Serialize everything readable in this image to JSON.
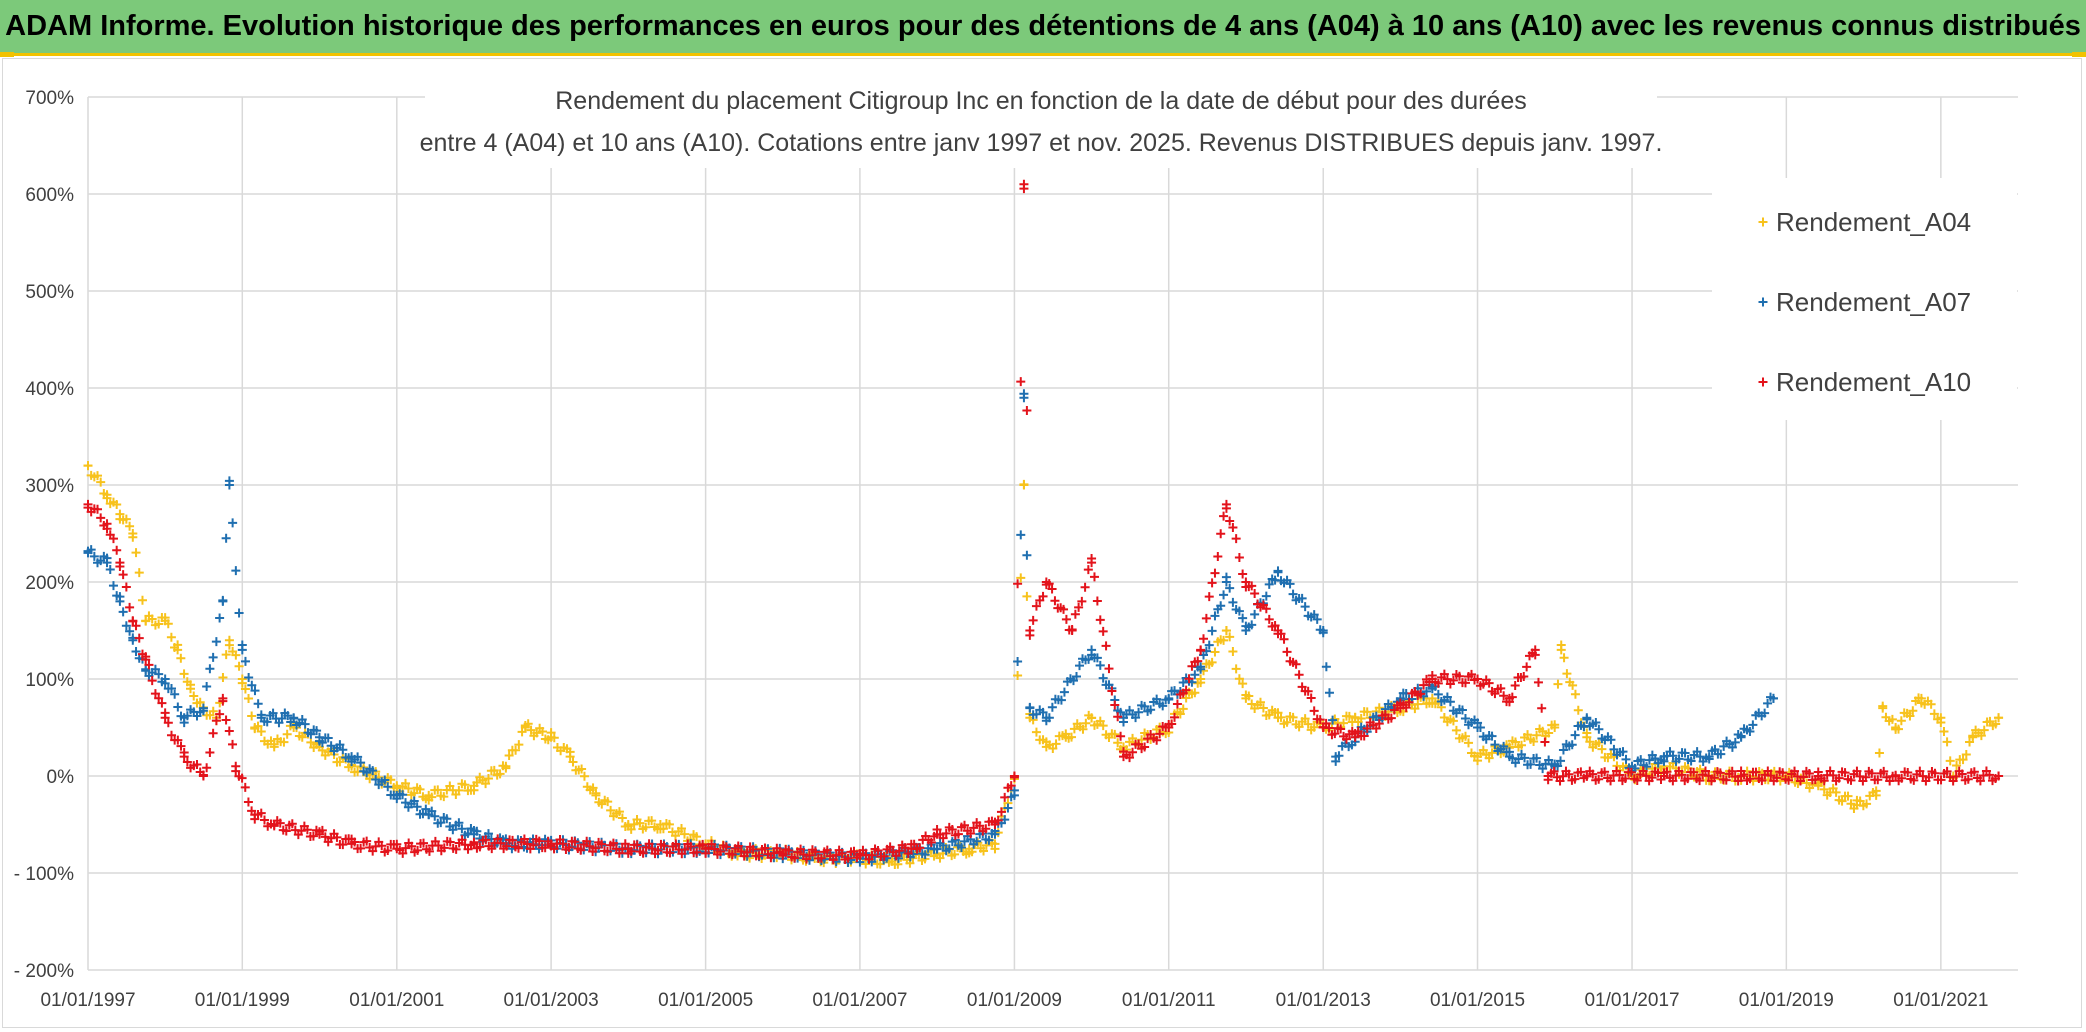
{
  "banner": {
    "title": "ADAM Informe. Evolution historique des performances en euros pour des détentions de 4 ans (A04) à 10 ans (A10) avec les revenus connus distribués"
  },
  "colors": {
    "banner_bg": "#7cc97a",
    "banner_accent": "#f2c200",
    "A04": "#f7c21c",
    "A07": "#1f6fb0",
    "A10": "#e3131b",
    "grid": "#d9d9d9"
  },
  "chart_data": {
    "type": "scatter",
    "title_lines": [
      "Rendement du placement Citigroup Inc en fonction de la date de début pour des durées",
      "entre 4 (A04) et 10 ans (A10). Cotations entre janv 1997 et nov. 2025. Revenus DISTRIBUES depuis janv. 1997."
    ],
    "xlabel": "",
    "ylabel": "",
    "x_range": [
      "1997-01-01",
      "2022-01-01"
    ],
    "ylim": [
      -200,
      700
    ],
    "y_ticks": [
      -200,
      -100,
      0,
      100,
      200,
      300,
      400,
      500,
      600,
      700
    ],
    "y_tick_labels": [
      "- 200%",
      "- 100%",
      "0%",
      "100%",
      "200%",
      "300%",
      "400%",
      "500%",
      "600%",
      "700%"
    ],
    "x_ticks": [
      "1997-01-01",
      "1999-01-01",
      "2001-01-01",
      "2003-01-01",
      "2005-01-01",
      "2007-01-01",
      "2009-01-01",
      "2011-01-01",
      "2013-01-01",
      "2015-01-01",
      "2017-01-01",
      "2019-01-01",
      "2021-01-01"
    ],
    "x_tick_labels": [
      "01/01/1997",
      "01/01/1999",
      "01/01/2001",
      "01/01/2003",
      "01/01/2005",
      "01/01/2007",
      "01/01/2009",
      "01/01/2011",
      "01/01/2013",
      "01/01/2015",
      "01/01/2017",
      "01/01/2019",
      "01/01/2021"
    ],
    "grid": true,
    "legend_position": "top-right",
    "marker": "+",
    "series": [
      {
        "name": "Rendement_A04",
        "color": "#f7c21c",
        "points": [
          [
            "1997-01-01",
            320
          ],
          [
            "1997-04-01",
            290
          ],
          [
            "1997-06-01",
            270
          ],
          [
            "1997-08-01",
            250
          ],
          [
            "1997-10-01",
            160
          ],
          [
            "1998-01-01",
            160
          ],
          [
            "1998-03-01",
            130
          ],
          [
            "1998-05-01",
            90
          ],
          [
            "1998-07-01",
            70
          ],
          [
            "1998-09-01",
            60
          ],
          [
            "1998-11-01",
            140
          ],
          [
            "1999-01-01",
            100
          ],
          [
            "1999-03-01",
            50
          ],
          [
            "1999-06-01",
            30
          ],
          [
            "1999-09-01",
            50
          ],
          [
            "2000-01-01",
            30
          ],
          [
            "2000-06-01",
            10
          ],
          [
            "2001-01-01",
            -10
          ],
          [
            "2001-06-01",
            -20
          ],
          [
            "2002-01-01",
            -10
          ],
          [
            "2002-06-01",
            10
          ],
          [
            "2002-09-01",
            50
          ],
          [
            "2003-01-01",
            40
          ],
          [
            "2003-04-01",
            20
          ],
          [
            "2003-08-01",
            -20
          ],
          [
            "2004-01-01",
            -50
          ],
          [
            "2004-06-01",
            -50
          ],
          [
            "2005-01-01",
            -70
          ],
          [
            "2005-06-01",
            -80
          ],
          [
            "2006-01-01",
            -80
          ],
          [
            "2006-06-01",
            -85
          ],
          [
            "2007-01-01",
            -85
          ],
          [
            "2007-06-01",
            -88
          ],
          [
            "2008-01-01",
            -80
          ],
          [
            "2008-06-01",
            -75
          ],
          [
            "2008-10-01",
            -70
          ],
          [
            "2009-01-01",
            0
          ],
          [
            "2009-02-15",
            300
          ],
          [
            "2009-03-15",
            60
          ],
          [
            "2009-06-01",
            30
          ],
          [
            "2009-09-01",
            40
          ],
          [
            "2010-01-01",
            60
          ],
          [
            "2010-06-01",
            30
          ],
          [
            "2011-01-01",
            50
          ],
          [
            "2011-06-01",
            100
          ],
          [
            "2011-10-01",
            150
          ],
          [
            "2012-01-01",
            80
          ],
          [
            "2012-06-01",
            60
          ],
          [
            "2013-01-01",
            50
          ],
          [
            "2013-06-01",
            60
          ],
          [
            "2014-01-01",
            70
          ],
          [
            "2014-06-01",
            80
          ],
          [
            "2015-01-01",
            20
          ],
          [
            "2015-06-01",
            30
          ],
          [
            "2016-01-01",
            50
          ],
          [
            "2016-02-01",
            130
          ],
          [
            "2016-06-01",
            40
          ],
          [
            "2017-01-01",
            0
          ],
          [
            "2017-06-01",
            10
          ],
          [
            "2018-01-01",
            0
          ],
          [
            "2018-06-01",
            0
          ],
          [
            "2019-01-01",
            0
          ],
          [
            "2019-06-01",
            -10
          ],
          [
            "2019-12-01",
            -30
          ],
          [
            "2020-03-01",
            -20
          ],
          [
            "2020-04-01",
            70
          ],
          [
            "2020-06-01",
            50
          ],
          [
            "2020-10-01",
            80
          ],
          [
            "2021-01-01",
            60
          ],
          [
            "2021-03-01",
            0
          ],
          [
            "2021-06-01",
            40
          ],
          [
            "2021-10-01",
            60
          ]
        ]
      },
      {
        "name": "Rendement_A07",
        "color": "#1f6fb0",
        "points": [
          [
            "1997-01-01",
            230
          ],
          [
            "1997-04-01",
            220
          ],
          [
            "1997-06-01",
            180
          ],
          [
            "1997-08-01",
            140
          ],
          [
            "1997-10-01",
            110
          ],
          [
            "1998-01-01",
            100
          ],
          [
            "1998-04-01",
            60
          ],
          [
            "1998-07-01",
            70
          ],
          [
            "1998-10-01",
            180
          ],
          [
            "1998-11-01",
            300
          ],
          [
            "1999-01-01",
            130
          ],
          [
            "1999-04-01",
            60
          ],
          [
            "1999-09-01",
            60
          ],
          [
            "2000-01-01",
            40
          ],
          [
            "2000-06-01",
            20
          ],
          [
            "2001-01-01",
            -20
          ],
          [
            "2001-06-01",
            -40
          ],
          [
            "2002-01-01",
            -60
          ],
          [
            "2002-06-01",
            -70
          ],
          [
            "2003-01-01",
            -70
          ],
          [
            "2004-01-01",
            -75
          ],
          [
            "2005-01-01",
            -75
          ],
          [
            "2006-01-01",
            -80
          ],
          [
            "2007-01-01",
            -85
          ],
          [
            "2008-01-01",
            -75
          ],
          [
            "2008-10-01",
            -60
          ],
          [
            "2009-01-01",
            -20
          ],
          [
            "2009-02-15",
            390
          ],
          [
            "2009-03-15",
            70
          ],
          [
            "2009-06-01",
            60
          ],
          [
            "2010-01-01",
            130
          ],
          [
            "2010-06-01",
            60
          ],
          [
            "2011-01-01",
            80
          ],
          [
            "2011-06-01",
            110
          ],
          [
            "2011-10-01",
            200
          ],
          [
            "2012-01-01",
            150
          ],
          [
            "2012-06-01",
            210
          ],
          [
            "2013-01-01",
            150
          ],
          [
            "2013-03-01",
            20
          ],
          [
            "2013-06-01",
            40
          ],
          [
            "2014-01-01",
            80
          ],
          [
            "2014-06-01",
            90
          ],
          [
            "2015-01-01",
            50
          ],
          [
            "2015-06-01",
            20
          ],
          [
            "2016-01-01",
            10
          ],
          [
            "2016-06-01",
            60
          ],
          [
            "2017-01-01",
            10
          ],
          [
            "2017-06-01",
            20
          ],
          [
            "2018-01-01",
            20
          ],
          [
            "2018-06-01",
            40
          ],
          [
            "2018-11-01",
            80
          ]
        ]
      },
      {
        "name": "Rendement_A10",
        "color": "#e3131b",
        "points": [
          [
            "1997-01-01",
            280
          ],
          [
            "1997-04-01",
            260
          ],
          [
            "1997-06-01",
            220
          ],
          [
            "1997-08-01",
            160
          ],
          [
            "1997-10-01",
            120
          ],
          [
            "1998-01-01",
            60
          ],
          [
            "1998-04-01",
            20
          ],
          [
            "1998-07-01",
            0
          ],
          [
            "1998-10-01",
            80
          ],
          [
            "1998-12-01",
            10
          ],
          [
            "1999-03-01",
            -40
          ],
          [
            "1999-06-01",
            -50
          ],
          [
            "2000-01-01",
            -60
          ],
          [
            "2000-06-01",
            -70
          ],
          [
            "2001-01-01",
            -75
          ],
          [
            "2002-01-01",
            -70
          ],
          [
            "2003-01-01",
            -70
          ],
          [
            "2004-01-01",
            -75
          ],
          [
            "2005-01-01",
            -75
          ],
          [
            "2006-01-01",
            -80
          ],
          [
            "2007-01-01",
            -82
          ],
          [
            "2007-09-01",
            -75
          ],
          [
            "2008-01-01",
            -60
          ],
          [
            "2008-10-01",
            -50
          ],
          [
            "2009-01-01",
            0
          ],
          [
            "2009-02-15",
            610
          ],
          [
            "2009-03-15",
            150
          ],
          [
            "2009-06-01",
            200
          ],
          [
            "2009-10-01",
            150
          ],
          [
            "2010-01-01",
            220
          ],
          [
            "2010-06-01",
            20
          ],
          [
            "2011-01-01",
            50
          ],
          [
            "2011-06-01",
            130
          ],
          [
            "2011-10-01",
            280
          ],
          [
            "2012-01-01",
            200
          ],
          [
            "2012-06-01",
            150
          ],
          [
            "2013-01-01",
            50
          ],
          [
            "2013-06-01",
            40
          ],
          [
            "2014-01-01",
            70
          ],
          [
            "2014-06-01",
            100
          ],
          [
            "2015-01-01",
            100
          ],
          [
            "2015-06-01",
            80
          ],
          [
            "2015-10-01",
            130
          ],
          [
            "2015-12-01",
            0
          ],
          [
            "2016-06-01",
            0
          ],
          [
            "2017-06-01",
            0
          ],
          [
            "2018-06-01",
            0
          ],
          [
            "2019-06-01",
            0
          ],
          [
            "2020-06-01",
            0
          ],
          [
            "2021-10-01",
            0
          ]
        ]
      }
    ]
  }
}
